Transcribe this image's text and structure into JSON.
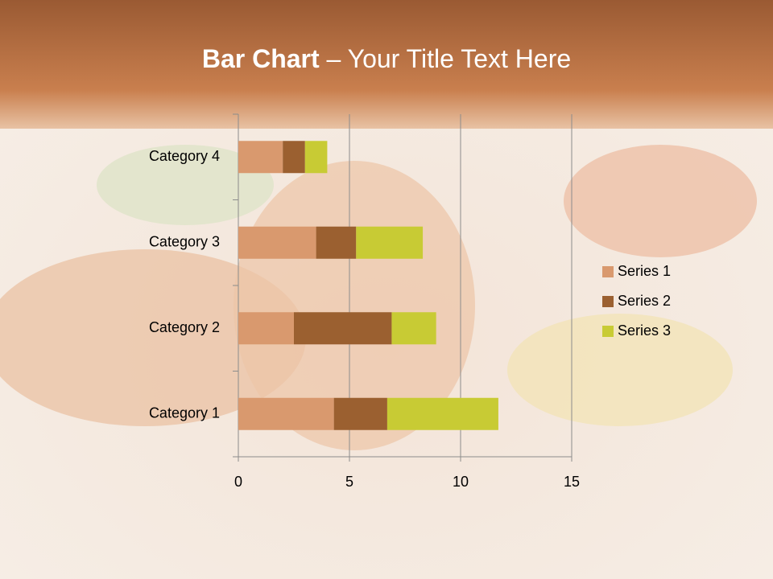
{
  "chart_data": {
    "type": "stacked-barh",
    "title_bold": "Bar Chart",
    "title": "– Your Title Text Here",
    "categories": [
      "Category 1",
      "Category 2",
      "Category 3",
      "Category 4"
    ],
    "series": [
      {
        "name": "Series 1",
        "color": "#d9996e",
        "values": [
          4.3,
          2.5,
          3.5,
          2.0
        ]
      },
      {
        "name": "Series 2",
        "color": "#9b6030",
        "values": [
          2.4,
          4.4,
          1.8,
          1.0
        ]
      },
      {
        "name": "Series 3",
        "color": "#c8cb34",
        "values": [
          5.0,
          2.0,
          3.0,
          1.0
        ]
      }
    ],
    "xlim": [
      0,
      15
    ],
    "xticks": [
      0,
      5,
      10,
      15
    ],
    "grid": true,
    "legend": "right"
  }
}
